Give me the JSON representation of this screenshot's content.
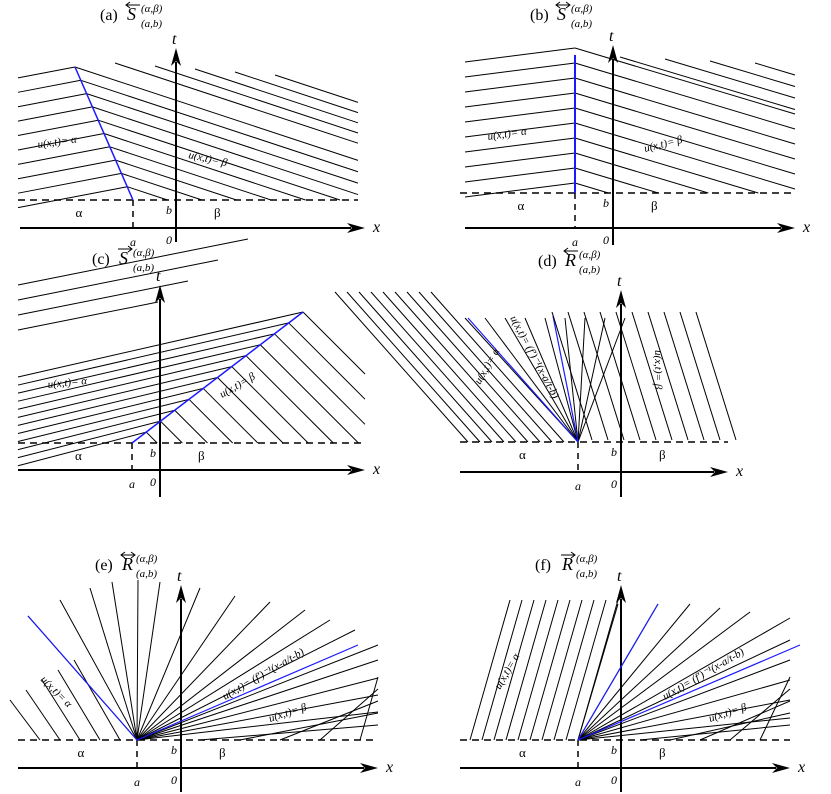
{
  "panels": [
    {
      "id": "a",
      "tag": "(a)",
      "symbol": "S",
      "arrow": "left-arrow-icon",
      "sup": "(α,β)",
      "sub": "(a,b)",
      "labels": {
        "left": "u(x,t)= α",
        "right": "u(x,t)= β"
      }
    },
    {
      "id": "b",
      "tag": "(b)",
      "symbol": "S",
      "arrow": "both-arrow-icon",
      "sup": "(α,β)",
      "sub": "(a,b)",
      "labels": {
        "left": "u(x,t)= α",
        "right": "u(x,t)= β"
      }
    },
    {
      "id": "c",
      "tag": "(c)",
      "symbol": "S",
      "arrow": "right-arrow-icon",
      "sup": "(α,β)",
      "sub": "(a,b)",
      "labels": {
        "left": "u(x,t)= α",
        "right": "u(x,t)= β"
      }
    },
    {
      "id": "d",
      "tag": "(d)",
      "symbol": "R",
      "arrow": "left-arrow-icon",
      "sup": "(α,β)",
      "sub": "(a,b)",
      "labels": {
        "left": "u(x,t)= α",
        "fan": "u(x,t)= (f')⁻¹(x-a/t-b)",
        "right": "u(x,t)= β"
      }
    },
    {
      "id": "e",
      "tag": "(e)",
      "symbol": "R",
      "arrow": "both-arrow-icon",
      "sup": "(α,β)",
      "sub": "(a,b)",
      "labels": {
        "left": "u(x,t)= α",
        "fan": "u(x,t)= (f')⁻¹(x-a/t-b)",
        "right": "u(x,t)= β"
      }
    },
    {
      "id": "f",
      "tag": "(f)",
      "symbol": "R",
      "arrow": "right-arrow-icon",
      "sup": "(α,β)",
      "sub": "(a,b)",
      "labels": {
        "left": "u(x,t)= α",
        "fan": "u(x,t)= (f')⁻¹(x-a/t-b)",
        "right": "u(x,t)= β"
      }
    }
  ],
  "axes": {
    "t": "t",
    "x": "x",
    "origin": "0",
    "a": "a",
    "b": "b",
    "alpha": "α",
    "beta": "β"
  },
  "colors": {
    "line": "#000000",
    "wave": "#1a1aff"
  }
}
